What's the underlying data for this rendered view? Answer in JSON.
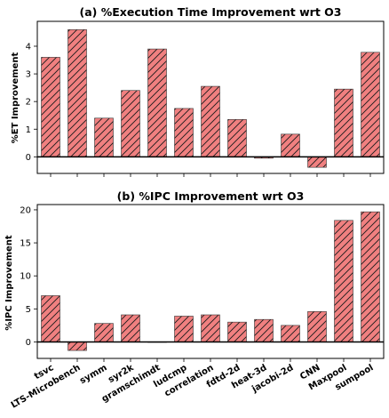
{
  "chart_data": [
    {
      "type": "bar",
      "title": "(a) %Execution Time Improvement wrt O3",
      "ylabel": "%ET Improvement",
      "xlabel": "",
      "categories": [
        "tsvc",
        "LTS-Microbench",
        "symm",
        "syr2k",
        "gramschimdt",
        "ludcmp",
        "correlation",
        "fdtd-2d",
        "heat-3d",
        "jacobi-2d",
        "CNN",
        "Maxpool",
        "sumpool"
      ],
      "values": [
        3.6,
        4.6,
        1.4,
        2.4,
        3.9,
        1.75,
        2.55,
        1.35,
        -0.05,
        0.82,
        -0.38,
        2.45,
        3.78
      ],
      "ylim": [
        -0.6,
        4.9
      ],
      "yticks": [
        0,
        1,
        2,
        3,
        4
      ],
      "xtick_labels_shown": false,
      "grid": false,
      "bar_color": "#f08080",
      "hatch": "//",
      "zero_line": true
    },
    {
      "type": "bar",
      "title": "(b) %IPC Improvement wrt O3",
      "ylabel": "%IPC Improvement",
      "xlabel": "",
      "categories": [
        "tsvc",
        "LTS-Microbench",
        "symm",
        "syr2k",
        "gramschimdt",
        "ludcmp",
        "correlation",
        "fdtd-2d",
        "heat-3d",
        "jacobi-2d",
        "CNN",
        "Maxpool",
        "sumpool"
      ],
      "values": [
        7.0,
        -1.3,
        2.8,
        4.1,
        0.0,
        3.9,
        4.1,
        3.0,
        3.4,
        2.5,
        4.6,
        18.4,
        19.7
      ],
      "ylim": [
        -2.5,
        20.8
      ],
      "yticks": [
        0,
        5,
        10,
        15,
        20
      ],
      "xtick_labels_shown": true,
      "grid": false,
      "bar_color": "#f08080",
      "hatch": "//",
      "zero_line": true
    }
  ]
}
